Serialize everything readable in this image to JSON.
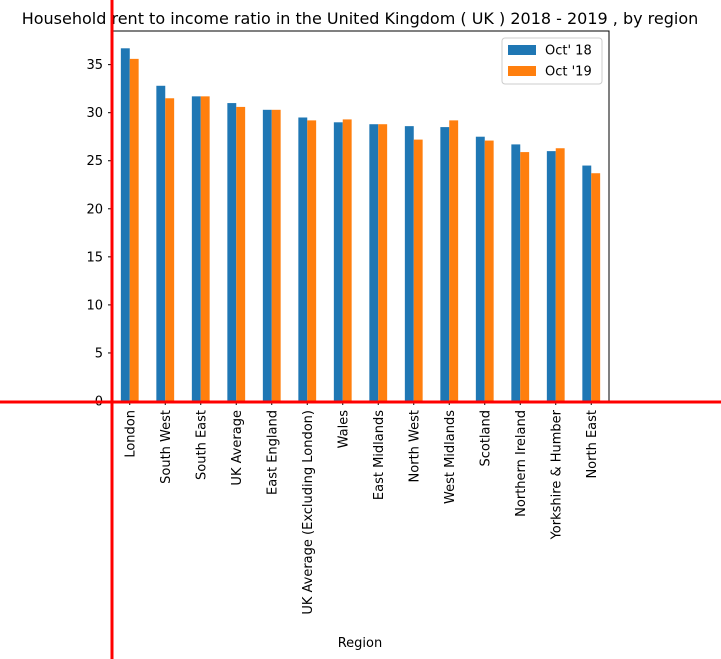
{
  "chart_data": {
    "type": "bar",
    "title": "Household rent to income ratio in the United Kingdom ( UK ) 2018 - 2019 , by region",
    "xlabel": "Region",
    "ylabel": "",
    "ylim": [
      0,
      38.5
    ],
    "yticks": [
      0,
      5,
      10,
      15,
      20,
      25,
      30,
      35
    ],
    "grid": false,
    "legend_position": "top-right",
    "categories": [
      "London",
      "South West",
      "South East",
      "UK Average",
      "East England",
      "UK Average (Excluding London)",
      "Wales",
      "East Midlands",
      "North West",
      "West Midlands",
      "Scotland",
      "Northern Ireland",
      "Yorkshire & Humber",
      "North East"
    ],
    "series": [
      {
        "name": "Oct' 18",
        "color": "#1f77b4",
        "values": [
          36.7,
          32.8,
          31.7,
          31.0,
          30.3,
          29.5,
          29.0,
          28.8,
          28.6,
          28.5,
          27.5,
          26.7,
          26.0,
          24.5
        ]
      },
      {
        "name": "Oct '19",
        "color": "#ff7f0e",
        "values": [
          35.6,
          31.5,
          31.7,
          30.6,
          30.3,
          29.2,
          29.3,
          28.8,
          27.2,
          29.2,
          27.1,
          25.9,
          26.3,
          23.7
        ]
      }
    ]
  },
  "overlay": {
    "crosshair_color": "#ff0000"
  }
}
